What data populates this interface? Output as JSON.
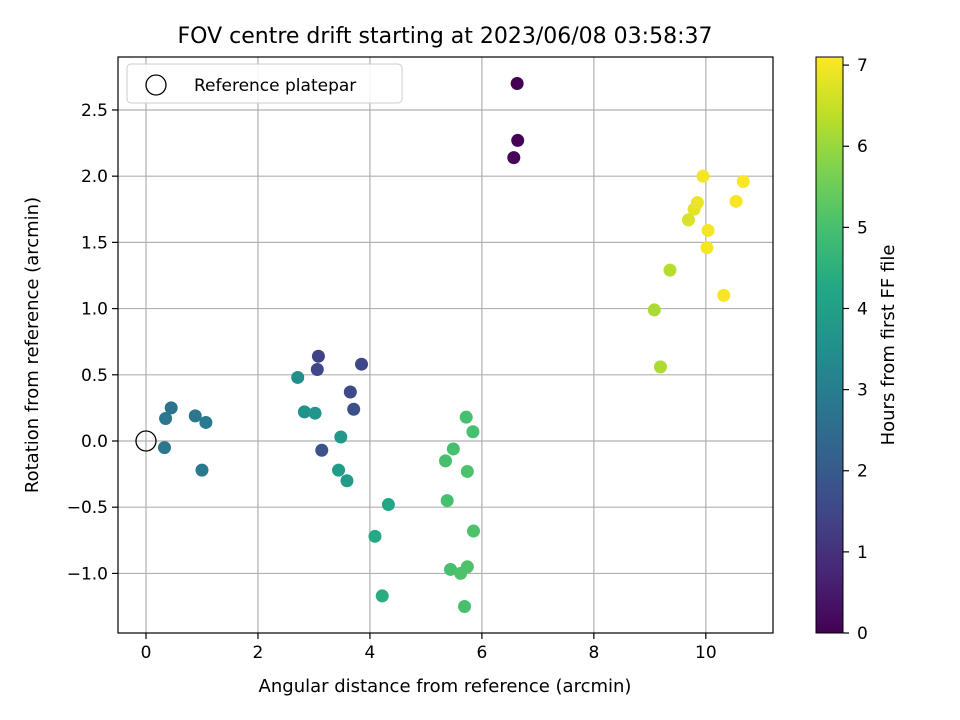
{
  "chart_data": {
    "type": "scatter",
    "title": "FOV centre drift starting at 2023/06/08 03:58:37",
    "xlabel": "Angular distance from reference (arcmin)",
    "ylabel": "Rotation from reference (arcmin)",
    "xlim": [
      -0.5,
      11.2
    ],
    "ylim": [
      -1.45,
      2.9
    ],
    "xticks": [
      0,
      2,
      4,
      6,
      8,
      10
    ],
    "yticks": [
      -1.0,
      -0.5,
      0.0,
      0.5,
      1.0,
      1.5,
      2.0,
      2.5
    ],
    "grid": true,
    "legend": {
      "placement": "top-left",
      "entries": [
        "Reference platepar"
      ]
    },
    "reference_point": {
      "x": 0.0,
      "y": 0.0
    },
    "colorbar": {
      "label": "Hours from first FF file",
      "range": [
        0,
        7.1
      ],
      "ticks": [
        0,
        1,
        2,
        3,
        4,
        5,
        6,
        7
      ],
      "colormap": "viridis"
    },
    "points": [
      {
        "x": 6.63,
        "y": 2.7,
        "hours": 0.0
      },
      {
        "x": 6.64,
        "y": 2.27,
        "hours": 0.05
      },
      {
        "x": 6.57,
        "y": 2.14,
        "hours": 0.1
      },
      {
        "x": 3.08,
        "y": 0.64,
        "hours": 1.4
      },
      {
        "x": 3.85,
        "y": 0.58,
        "hours": 1.5
      },
      {
        "x": 3.06,
        "y": 0.54,
        "hours": 1.5
      },
      {
        "x": 3.65,
        "y": 0.37,
        "hours": 1.6
      },
      {
        "x": 3.71,
        "y": 0.24,
        "hours": 1.7
      },
      {
        "x": 3.14,
        "y": -0.07,
        "hours": 1.8
      },
      {
        "x": 0.45,
        "y": 0.25,
        "hours": 2.7
      },
      {
        "x": 0.35,
        "y": 0.17,
        "hours": 2.8
      },
      {
        "x": 0.88,
        "y": 0.19,
        "hours": 2.8
      },
      {
        "x": 1.07,
        "y": 0.14,
        "hours": 2.9
      },
      {
        "x": 0.33,
        "y": -0.05,
        "hours": 2.8
      },
      {
        "x": 1.0,
        "y": -0.22,
        "hours": 2.9
      },
      {
        "x": 2.71,
        "y": 0.48,
        "hours": 3.5
      },
      {
        "x": 2.83,
        "y": 0.22,
        "hours": 3.6
      },
      {
        "x": 3.02,
        "y": 0.21,
        "hours": 3.7
      },
      {
        "x": 3.48,
        "y": 0.03,
        "hours": 3.8
      },
      {
        "x": 3.44,
        "y": -0.22,
        "hours": 3.9
      },
      {
        "x": 3.59,
        "y": -0.3,
        "hours": 3.9
      },
      {
        "x": 4.33,
        "y": -0.48,
        "hours": 4.2
      },
      {
        "x": 4.09,
        "y": -0.72,
        "hours": 4.3
      },
      {
        "x": 4.22,
        "y": -1.17,
        "hours": 4.4
      },
      {
        "x": 5.72,
        "y": 0.18,
        "hours": 5.0
      },
      {
        "x": 5.84,
        "y": 0.07,
        "hours": 5.0
      },
      {
        "x": 5.49,
        "y": -0.06,
        "hours": 5.0
      },
      {
        "x": 5.35,
        "y": -0.15,
        "hours": 5.0
      },
      {
        "x": 5.74,
        "y": -0.23,
        "hours": 5.1
      },
      {
        "x": 5.38,
        "y": -0.45,
        "hours": 5.0
      },
      {
        "x": 5.85,
        "y": -0.68,
        "hours": 5.1
      },
      {
        "x": 5.44,
        "y": -0.97,
        "hours": 5.0
      },
      {
        "x": 5.62,
        "y": -1.0,
        "hours": 5.1
      },
      {
        "x": 5.74,
        "y": -0.95,
        "hours": 5.1
      },
      {
        "x": 5.69,
        "y": -1.25,
        "hours": 5.0
      },
      {
        "x": 9.08,
        "y": 0.99,
        "hours": 6.2
      },
      {
        "x": 9.36,
        "y": 1.29,
        "hours": 6.3
      },
      {
        "x": 9.19,
        "y": 0.56,
        "hours": 6.2
      },
      {
        "x": 9.69,
        "y": 1.67,
        "hours": 6.7
      },
      {
        "x": 9.79,
        "y": 1.75,
        "hours": 6.8
      },
      {
        "x": 9.85,
        "y": 1.8,
        "hours": 6.9
      },
      {
        "x": 9.95,
        "y": 2.0,
        "hours": 7.0
      },
      {
        "x": 10.04,
        "y": 1.59,
        "hours": 7.0
      },
      {
        "x": 10.02,
        "y": 1.46,
        "hours": 7.0
      },
      {
        "x": 10.32,
        "y": 1.1,
        "hours": 7.05
      },
      {
        "x": 10.54,
        "y": 1.81,
        "hours": 7.05
      },
      {
        "x": 10.67,
        "y": 1.96,
        "hours": 7.1
      }
    ]
  }
}
